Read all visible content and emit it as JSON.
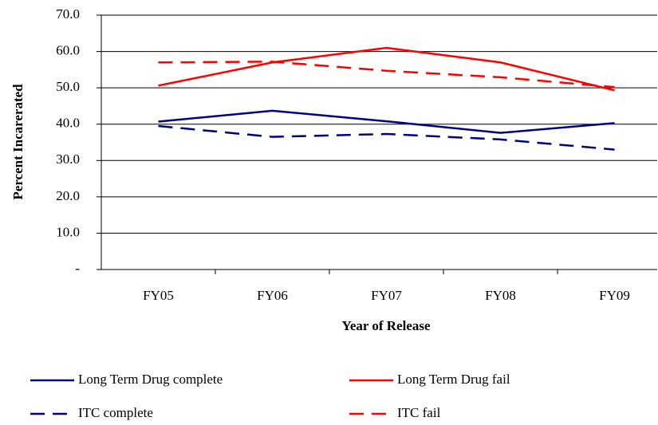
{
  "chart_data": {
    "type": "line",
    "x_label": "Year of Release",
    "y_label": "Percent Incarerated",
    "categories": [
      "FY05",
      "FY06",
      "FY07",
      "FY08",
      "FY09"
    ],
    "series": [
      {
        "name": "Long Term Drug complete",
        "color": "#000080",
        "line_style": "solid",
        "values": [
          40.7,
          43.7,
          40.8,
          37.6,
          40.3
        ]
      },
      {
        "name": "Long Term Drug fail",
        "color": "#ff0000",
        "line_style": "solid",
        "values": [
          50.6,
          57.0,
          61.0,
          57.0,
          49.3
        ]
      },
      {
        "name": "ITC complete",
        "color": "#000080",
        "line_style": "dashed",
        "values": [
          39.5,
          36.5,
          37.3,
          35.8,
          33.0
        ]
      },
      {
        "name": "ITC fail",
        "color": "#ff0000",
        "line_style": "dashed",
        "values": [
          57.0,
          57.2,
          54.7,
          52.9,
          50.2
        ]
      }
    ],
    "ylim": [
      0,
      70
    ],
    "yticks": [
      {
        "value": 0,
        "label": "-"
      },
      {
        "value": 10,
        "label": "10.0"
      },
      {
        "value": 20,
        "label": "20.0"
      },
      {
        "value": 30,
        "label": "30.0"
      },
      {
        "value": 40,
        "label": "40.0"
      },
      {
        "value": 50,
        "label": "50.0"
      },
      {
        "value": 60,
        "label": "60.0"
      },
      {
        "value": 70,
        "label": "70.0"
      }
    ],
    "grid": true
  }
}
